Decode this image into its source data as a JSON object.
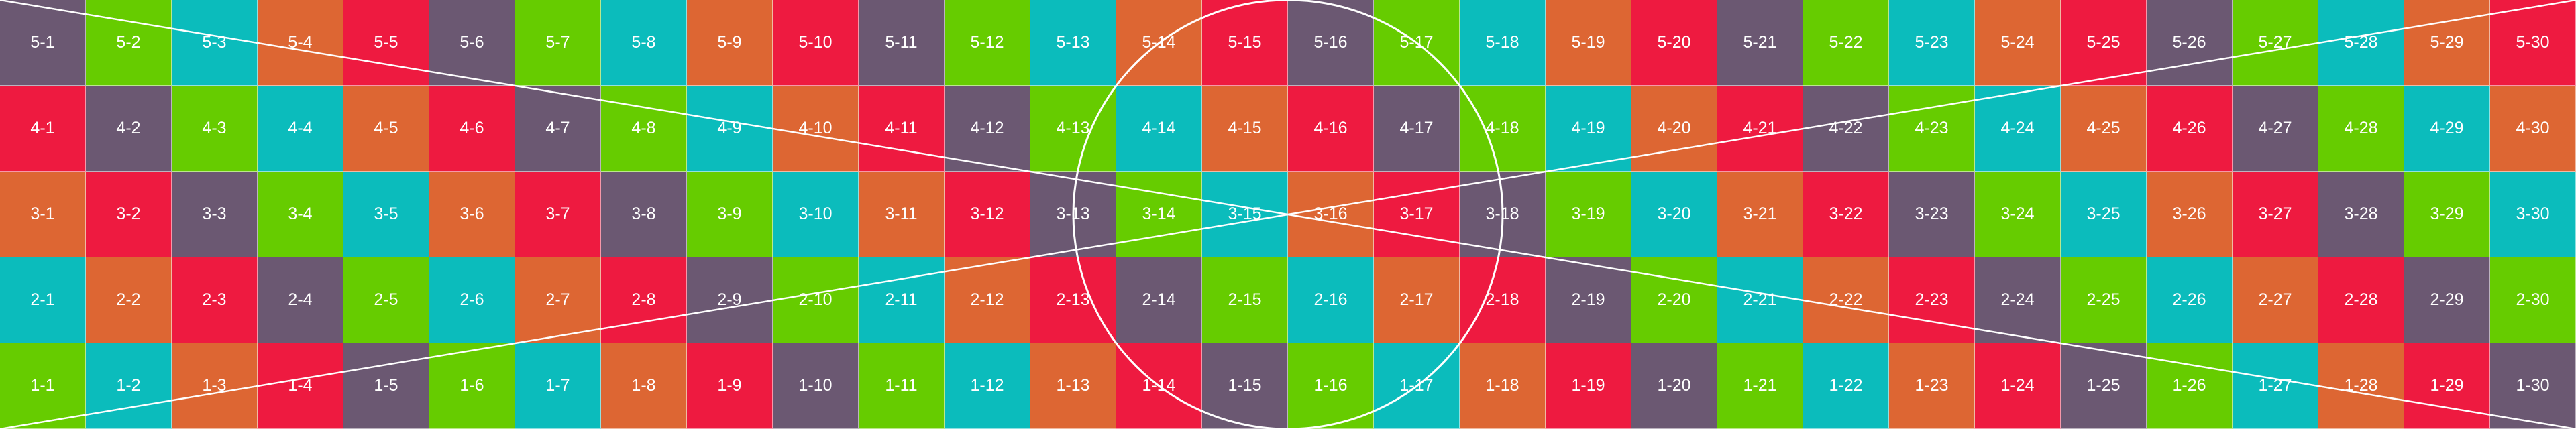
{
  "colors": {
    "purple": "#6b5872",
    "green": "#66cc00",
    "teal": "#0bbcbc",
    "orange": "#dd6633",
    "red": "#ee1a40",
    "line": "#ffffff"
  },
  "overlay_shapes": [
    "circle",
    "diagonal-line",
    "diagonal-line"
  ],
  "rows": [
    {
      "cells": [
        {
          "label": "5-1",
          "color": "purple"
        },
        {
          "label": "5-2",
          "color": "green"
        },
        {
          "label": "5-3",
          "color": "teal"
        },
        {
          "label": "5-4",
          "color": "orange"
        },
        {
          "label": "5-5",
          "color": "red"
        },
        {
          "label": "5-6",
          "color": "purple"
        },
        {
          "label": "5-7",
          "color": "green"
        },
        {
          "label": "5-8",
          "color": "teal"
        },
        {
          "label": "5-9",
          "color": "orange"
        },
        {
          "label": "5-10",
          "color": "red"
        },
        {
          "label": "5-11",
          "color": "purple"
        },
        {
          "label": "5-12",
          "color": "green"
        },
        {
          "label": "5-13",
          "color": "teal"
        },
        {
          "label": "5-14",
          "color": "orange"
        },
        {
          "label": "5-15",
          "color": "red"
        },
        {
          "label": "5-16",
          "color": "purple"
        },
        {
          "label": "5-17",
          "color": "green"
        },
        {
          "label": "5-18",
          "color": "teal"
        },
        {
          "label": "5-19",
          "color": "orange"
        },
        {
          "label": "5-20",
          "color": "red"
        },
        {
          "label": "5-21",
          "color": "purple"
        },
        {
          "label": "5-22",
          "color": "green"
        },
        {
          "label": "5-23",
          "color": "teal"
        },
        {
          "label": "5-24",
          "color": "orange"
        },
        {
          "label": "5-25",
          "color": "red"
        },
        {
          "label": "5-26",
          "color": "purple"
        },
        {
          "label": "5-27",
          "color": "green"
        },
        {
          "label": "5-28",
          "color": "teal"
        },
        {
          "label": "5-29",
          "color": "orange"
        },
        {
          "label": "5-30",
          "color": "red"
        }
      ]
    },
    {
      "cells": [
        {
          "label": "4-1",
          "color": "red"
        },
        {
          "label": "4-2",
          "color": "purple"
        },
        {
          "label": "4-3",
          "color": "green"
        },
        {
          "label": "4-4",
          "color": "teal"
        },
        {
          "label": "4-5",
          "color": "orange"
        },
        {
          "label": "4-6",
          "color": "red"
        },
        {
          "label": "4-7",
          "color": "purple"
        },
        {
          "label": "4-8",
          "color": "green"
        },
        {
          "label": "4-9",
          "color": "teal"
        },
        {
          "label": "4-10",
          "color": "orange"
        },
        {
          "label": "4-11",
          "color": "red"
        },
        {
          "label": "4-12",
          "color": "purple"
        },
        {
          "label": "4-13",
          "color": "green"
        },
        {
          "label": "4-14",
          "color": "teal"
        },
        {
          "label": "4-15",
          "color": "orange"
        },
        {
          "label": "4-16",
          "color": "red"
        },
        {
          "label": "4-17",
          "color": "purple"
        },
        {
          "label": "4-18",
          "color": "green"
        },
        {
          "label": "4-19",
          "color": "teal"
        },
        {
          "label": "4-20",
          "color": "orange"
        },
        {
          "label": "4-21",
          "color": "red"
        },
        {
          "label": "4-22",
          "color": "purple"
        },
        {
          "label": "4-23",
          "color": "green"
        },
        {
          "label": "4-24",
          "color": "teal"
        },
        {
          "label": "4-25",
          "color": "orange"
        },
        {
          "label": "4-26",
          "color": "red"
        },
        {
          "label": "4-27",
          "color": "purple"
        },
        {
          "label": "4-28",
          "color": "green"
        },
        {
          "label": "4-29",
          "color": "teal"
        },
        {
          "label": "4-30",
          "color": "orange"
        }
      ]
    },
    {
      "cells": [
        {
          "label": "3-1",
          "color": "orange"
        },
        {
          "label": "3-2",
          "color": "red"
        },
        {
          "label": "3-3",
          "color": "purple"
        },
        {
          "label": "3-4",
          "color": "green"
        },
        {
          "label": "3-5",
          "color": "teal"
        },
        {
          "label": "3-6",
          "color": "orange"
        },
        {
          "label": "3-7",
          "color": "red"
        },
        {
          "label": "3-8",
          "color": "purple"
        },
        {
          "label": "3-9",
          "color": "green"
        },
        {
          "label": "3-10",
          "color": "teal"
        },
        {
          "label": "3-11",
          "color": "orange"
        },
        {
          "label": "3-12",
          "color": "red"
        },
        {
          "label": "3-13",
          "color": "purple"
        },
        {
          "label": "3-14",
          "color": "green"
        },
        {
          "label": "3-15",
          "color": "teal"
        },
        {
          "label": "3-16",
          "color": "orange"
        },
        {
          "label": "3-17",
          "color": "red"
        },
        {
          "label": "3-18",
          "color": "purple"
        },
        {
          "label": "3-19",
          "color": "green"
        },
        {
          "label": "3-20",
          "color": "teal"
        },
        {
          "label": "3-21",
          "color": "orange"
        },
        {
          "label": "3-22",
          "color": "red"
        },
        {
          "label": "3-23",
          "color": "purple"
        },
        {
          "label": "3-24",
          "color": "green"
        },
        {
          "label": "3-25",
          "color": "teal"
        },
        {
          "label": "3-26",
          "color": "orange"
        },
        {
          "label": "3-27",
          "color": "red"
        },
        {
          "label": "3-28",
          "color": "purple"
        },
        {
          "label": "3-29",
          "color": "green"
        },
        {
          "label": "3-30",
          "color": "teal"
        }
      ]
    },
    {
      "cells": [
        {
          "label": "2-1",
          "color": "teal"
        },
        {
          "label": "2-2",
          "color": "orange"
        },
        {
          "label": "2-3",
          "color": "red"
        },
        {
          "label": "2-4",
          "color": "purple"
        },
        {
          "label": "2-5",
          "color": "green"
        },
        {
          "label": "2-6",
          "color": "teal"
        },
        {
          "label": "2-7",
          "color": "orange"
        },
        {
          "label": "2-8",
          "color": "red"
        },
        {
          "label": "2-9",
          "color": "purple"
        },
        {
          "label": "2-10",
          "color": "green"
        },
        {
          "label": "2-11",
          "color": "teal"
        },
        {
          "label": "2-12",
          "color": "orange"
        },
        {
          "label": "2-13",
          "color": "red"
        },
        {
          "label": "2-14",
          "color": "purple"
        },
        {
          "label": "2-15",
          "color": "green"
        },
        {
          "label": "2-16",
          "color": "teal"
        },
        {
          "label": "2-17",
          "color": "orange"
        },
        {
          "label": "2-18",
          "color": "red"
        },
        {
          "label": "2-19",
          "color": "purple"
        },
        {
          "label": "2-20",
          "color": "green"
        },
        {
          "label": "2-21",
          "color": "teal"
        },
        {
          "label": "2-22",
          "color": "orange"
        },
        {
          "label": "2-23",
          "color": "red"
        },
        {
          "label": "2-24",
          "color": "purple"
        },
        {
          "label": "2-25",
          "color": "green"
        },
        {
          "label": "2-26",
          "color": "teal"
        },
        {
          "label": "2-27",
          "color": "orange"
        },
        {
          "label": "2-28",
          "color": "red"
        },
        {
          "label": "2-29",
          "color": "purple"
        },
        {
          "label": "2-30",
          "color": "green"
        }
      ]
    },
    {
      "cells": [
        {
          "label": "1-1",
          "color": "green"
        },
        {
          "label": "1-2",
          "color": "teal"
        },
        {
          "label": "1-3",
          "color": "orange"
        },
        {
          "label": "1-4",
          "color": "red"
        },
        {
          "label": "1-5",
          "color": "purple"
        },
        {
          "label": "1-6",
          "color": "green"
        },
        {
          "label": "1-7",
          "color": "teal"
        },
        {
          "label": "1-8",
          "color": "orange"
        },
        {
          "label": "1-9",
          "color": "red"
        },
        {
          "label": "1-10",
          "color": "purple"
        },
        {
          "label": "1-11",
          "color": "green"
        },
        {
          "label": "1-12",
          "color": "teal"
        },
        {
          "label": "1-13",
          "color": "orange"
        },
        {
          "label": "1-14",
          "color": "red"
        },
        {
          "label": "1-15",
          "color": "purple"
        },
        {
          "label": "1-16",
          "color": "green"
        },
        {
          "label": "1-17",
          "color": "teal"
        },
        {
          "label": "1-18",
          "color": "orange"
        },
        {
          "label": "1-19",
          "color": "red"
        },
        {
          "label": "1-20",
          "color": "purple"
        },
        {
          "label": "1-21",
          "color": "green"
        },
        {
          "label": "1-22",
          "color": "teal"
        },
        {
          "label": "1-23",
          "color": "orange"
        },
        {
          "label": "1-24",
          "color": "red"
        },
        {
          "label": "1-25",
          "color": "purple"
        },
        {
          "label": "1-26",
          "color": "green"
        },
        {
          "label": "1-27",
          "color": "teal"
        },
        {
          "label": "1-28",
          "color": "orange"
        },
        {
          "label": "1-29",
          "color": "red"
        },
        {
          "label": "1-30",
          "color": "purple"
        }
      ]
    }
  ]
}
